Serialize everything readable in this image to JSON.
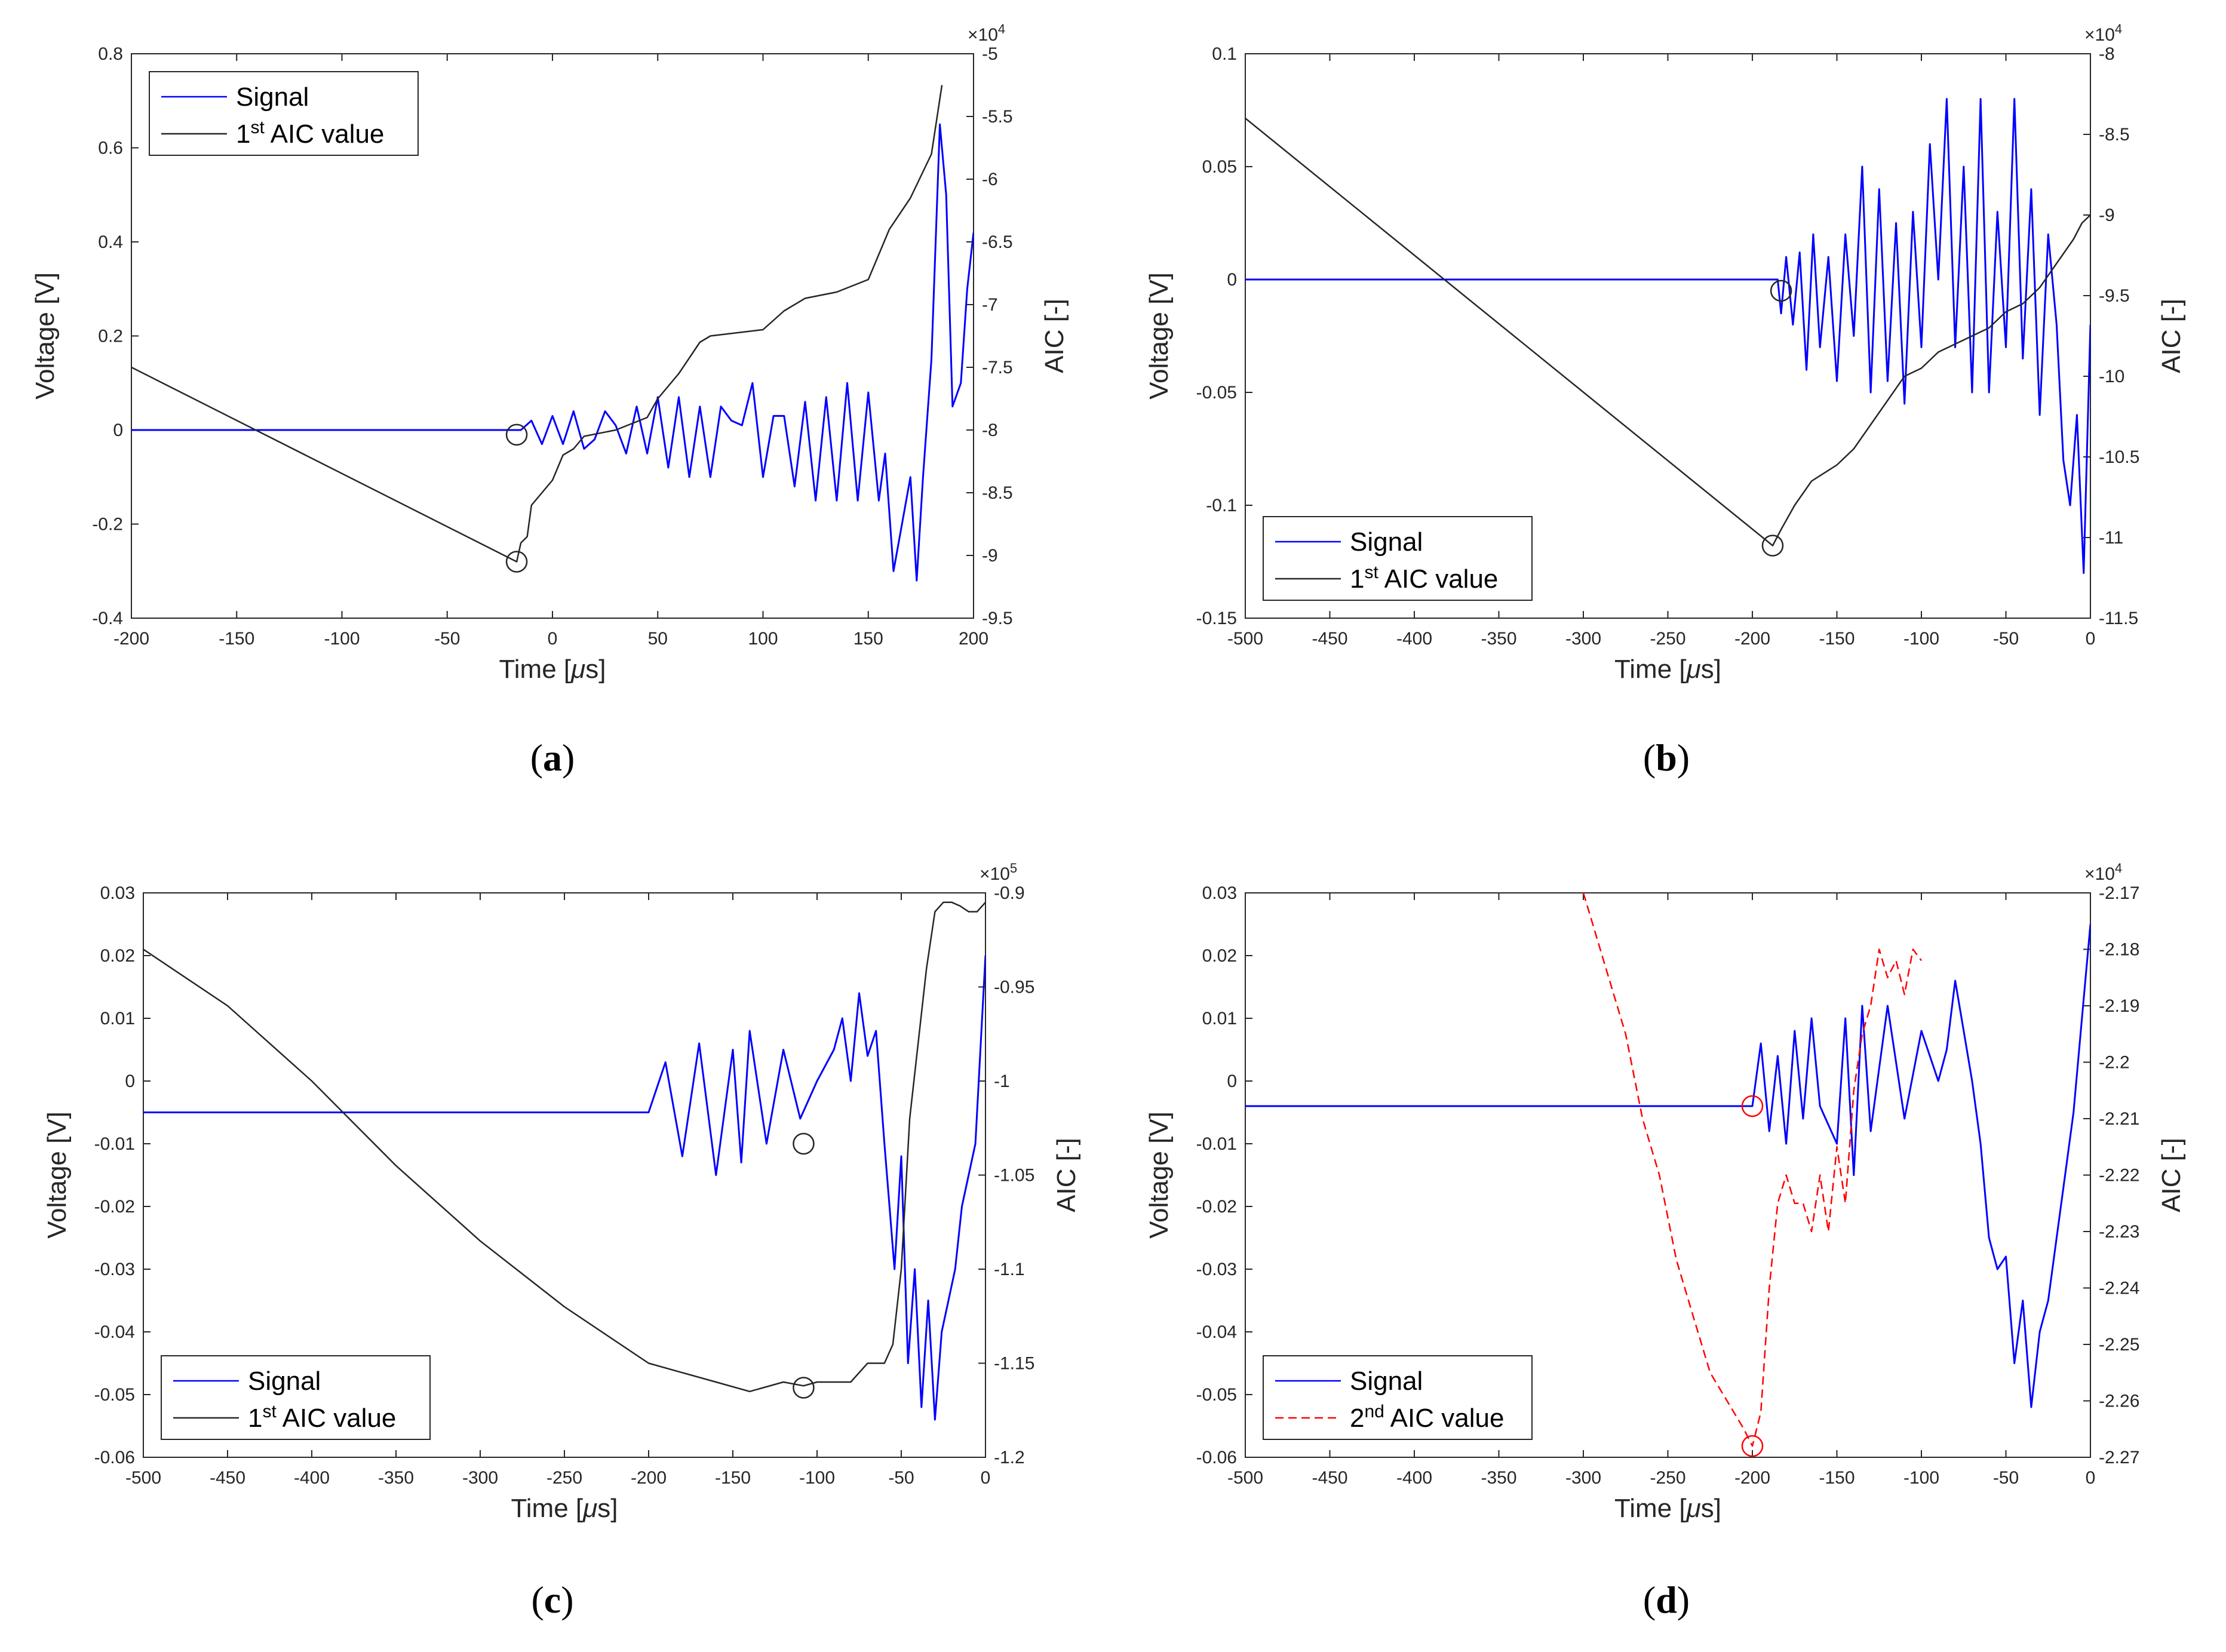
{
  "chart_data": [
    {
      "id": "a",
      "type": "line",
      "caption": "a",
      "xlabel": "Time [μs]",
      "xlabel_parts": [
        "Time [",
        "μ",
        "s]"
      ],
      "ylabel_left": "Voltage [V]",
      "ylabel_right": "AIC [-]",
      "xlim": [
        -200,
        200
      ],
      "xticks": [
        "-200",
        "-150",
        "-100",
        "-50",
        "0",
        "50",
        "100",
        "150",
        "200"
      ],
      "ylim_left": [
        -0.4,
        0.8
      ],
      "yticks_left": [
        "-0.4",
        "-0.2",
        "0",
        "0.2",
        "0.4",
        "0.6",
        "0.8"
      ],
      "ylim_right": [
        -9.5,
        -5
      ],
      "yticks_right": [
        "-9.5",
        "-9",
        "-8.5",
        "-8",
        "-7.5",
        "-7",
        "-6.5",
        "-6",
        "-5.5",
        "-5"
      ],
      "right_multiplier": "×10",
      "right_exponent": "4",
      "legend": {
        "position": "top-left",
        "entries": [
          {
            "label": "Signal",
            "sup": "",
            "suffix": ""
          },
          {
            "label": "1",
            "sup": "st",
            "suffix": " AIC value"
          }
        ]
      },
      "series": [
        {
          "name": "Signal",
          "axis": "left",
          "color": "#0000ff",
          "style": "solid",
          "x": [
            -200,
            -20,
            -15,
            -10,
            -5,
            0,
            5,
            10,
            15,
            20,
            25,
            30,
            35,
            40,
            45,
            50,
            55,
            60,
            65,
            70,
            75,
            80,
            85,
            90,
            95,
            100,
            105,
            110,
            115,
            120,
            125,
            130,
            135,
            140,
            145,
            150,
            155,
            158,
            162,
            166,
            170,
            173,
            176,
            180,
            184,
            187,
            190,
            194,
            197,
            200
          ],
          "y": [
            0,
            0,
            0,
            0.02,
            -0.03,
            0.03,
            -0.03,
            0.04,
            -0.04,
            -0.02,
            0.04,
            0.01,
            -0.05,
            0.05,
            -0.05,
            0.07,
            -0.08,
            0.07,
            -0.1,
            0.05,
            -0.1,
            0.05,
            0.02,
            0.01,
            0.1,
            -0.1,
            0.03,
            0.03,
            -0.12,
            0.06,
            -0.15,
            0.07,
            -0.15,
            0.1,
            -0.15,
            0.08,
            -0.15,
            -0.05,
            -0.3,
            -0.2,
            -0.1,
            -0.32,
            -0.1,
            0.15,
            0.65,
            0.5,
            0.05,
            0.1,
            0.3,
            0.42
          ]
        },
        {
          "name": "1st AIC value",
          "axis": "right",
          "color": "#262626",
          "style": "solid",
          "x": [
            -200,
            -17,
            -15,
            -12,
            -10,
            0,
            5,
            10,
            15,
            30,
            45,
            50,
            60,
            70,
            75,
            100,
            110,
            120,
            135,
            150,
            160,
            170,
            180,
            185
          ],
          "y": [
            -7.5,
            -9.05,
            -8.9,
            -8.85,
            -8.6,
            -8.4,
            -8.2,
            -8.15,
            -8.05,
            -8.0,
            -7.9,
            -7.75,
            -7.55,
            -7.3,
            -7.25,
            -7.2,
            -7.05,
            -6.95,
            -6.9,
            -6.8,
            -6.4,
            -6.15,
            -5.8,
            -5.25
          ]
        }
      ],
      "markers": [
        {
          "x": -17,
          "y": -0.01,
          "axis": "left",
          "color": "#262626"
        },
        {
          "x": -17,
          "y": -9.05,
          "axis": "right",
          "color": "#262626"
        }
      ]
    },
    {
      "id": "b",
      "type": "line",
      "caption": "b",
      "xlabel": "Time [μs]",
      "xlabel_parts": [
        "Time [",
        "μ",
        "s]"
      ],
      "ylabel_left": "Voltage [V]",
      "ylabel_right": "AIC [-]",
      "xlim": [
        -500,
        0
      ],
      "xticks": [
        "-500",
        "-450",
        "-400",
        "-350",
        "-300",
        "-250",
        "-200",
        "-150",
        "-100",
        "-50",
        "0"
      ],
      "ylim_left": [
        -0.15,
        0.1
      ],
      "yticks_left": [
        "-0.15",
        "-0.1",
        "-0.05",
        "0",
        "0.05",
        "0.1"
      ],
      "ylim_right": [
        -11.5,
        -8
      ],
      "yticks_right": [
        "-11.5",
        "-11",
        "-10.5",
        "-10",
        "-9.5",
        "-9",
        "-8.5",
        "-8"
      ],
      "right_multiplier": "×10",
      "right_exponent": "4",
      "legend": {
        "position": "bottom-left",
        "entries": [
          {
            "label": "Signal",
            "sup": "",
            "suffix": ""
          },
          {
            "label": "1",
            "sup": "st",
            "suffix": " AIC value"
          }
        ]
      },
      "series": [
        {
          "name": "Signal",
          "axis": "left",
          "color": "#0000ff",
          "style": "solid",
          "x": [
            -500,
            -185,
            -183,
            -180,
            -176,
            -172,
            -168,
            -164,
            -160,
            -155,
            -150,
            -145,
            -140,
            -135,
            -130,
            -125,
            -120,
            -115,
            -110,
            -105,
            -100,
            -95,
            -90,
            -85,
            -80,
            -75,
            -70,
            -65,
            -60,
            -55,
            -50,
            -45,
            -40,
            -35,
            -30,
            -25,
            -20,
            -16,
            -12,
            -8,
            -4,
            0
          ],
          "y": [
            0,
            0,
            -0.015,
            0.01,
            -0.02,
            0.012,
            -0.04,
            0.02,
            -0.03,
            0.01,
            -0.045,
            0.02,
            -0.025,
            0.05,
            -0.05,
            0.04,
            -0.045,
            0.025,
            -0.055,
            0.03,
            -0.03,
            0.06,
            0.0,
            0.08,
            -0.03,
            0.05,
            -0.05,
            0.08,
            -0.05,
            0.03,
            -0.03,
            0.08,
            -0.035,
            0.04,
            -0.06,
            0.02,
            -0.02,
            -0.08,
            -0.1,
            -0.06,
            -0.13,
            -0.02
          ]
        },
        {
          "name": "1st AIC value",
          "axis": "right",
          "color": "#262626",
          "style": "solid",
          "x": [
            -500,
            -188,
            -183,
            -175,
            -165,
            -150,
            -140,
            -130,
            -120,
            -110,
            -100,
            -90,
            -80,
            -70,
            -60,
            -50,
            -40,
            -30,
            -20,
            -10,
            -5,
            0
          ],
          "y": [
            -8.4,
            -11.05,
            -10.95,
            -10.8,
            -10.65,
            -10.55,
            -10.45,
            -10.3,
            -10.15,
            -10.0,
            -9.95,
            -9.85,
            -9.8,
            -9.75,
            -9.7,
            -9.6,
            -9.55,
            -9.45,
            -9.3,
            -9.15,
            -9.05,
            -9.0
          ]
        }
      ],
      "markers": [
        {
          "x": -183,
          "y": -0.005,
          "axis": "left",
          "color": "#262626"
        },
        {
          "x": -188,
          "y": -11.05,
          "axis": "right",
          "color": "#262626"
        }
      ]
    },
    {
      "id": "c",
      "type": "line",
      "caption": "c",
      "xlabel": "Time [μs]",
      "xlabel_parts": [
        "Time [",
        "μ",
        "s]"
      ],
      "ylabel_left": "Voltage [V]",
      "ylabel_right": "AIC [-]",
      "xlim": [
        -500,
        0
      ],
      "xticks": [
        "-500",
        "-450",
        "-400",
        "-350",
        "-300",
        "-250",
        "-200",
        "-150",
        "-100",
        "-50",
        "0"
      ],
      "ylim_left": [
        -0.06,
        0.03
      ],
      "yticks_left": [
        "-0.06",
        "-0.05",
        "-0.04",
        "-0.03",
        "-0.02",
        "-0.01",
        "0",
        "0.01",
        "0.02",
        "0.03"
      ],
      "ylim_right": [
        -1.2,
        -0.9
      ],
      "yticks_right": [
        "-1.2",
        "-1.15",
        "-1.1",
        "-1.05",
        "-1",
        "-0.95",
        "-0.9"
      ],
      "right_multiplier": "×10",
      "right_exponent": "5",
      "legend": {
        "position": "bottom-left",
        "entries": [
          {
            "label": "Signal",
            "sup": "",
            "suffix": ""
          },
          {
            "label": "1",
            "sup": "st",
            "suffix": " AIC value"
          }
        ]
      },
      "series": [
        {
          "name": "Signal",
          "axis": "left",
          "color": "#0000ff",
          "style": "solid",
          "x": [
            -500,
            -200,
            -190,
            -180,
            -170,
            -160,
            -150,
            -145,
            -140,
            -130,
            -120,
            -110,
            -100,
            -90,
            -85,
            -80,
            -75,
            -70,
            -65,
            -60,
            -57,
            -54,
            -50,
            -46,
            -42,
            -38,
            -34,
            -30,
            -26,
            -22,
            -18,
            -14,
            -10,
            -6,
            -3,
            0
          ],
          "y": [
            -0.005,
            -0.005,
            0.003,
            -0.012,
            0.006,
            -0.015,
            0.005,
            -0.013,
            0.008,
            -0.01,
            0.005,
            -0.006,
            0.0,
            0.005,
            0.01,
            0.0,
            0.014,
            0.004,
            0.008,
            -0.01,
            -0.02,
            -0.03,
            -0.012,
            -0.045,
            -0.03,
            -0.052,
            -0.035,
            -0.054,
            -0.04,
            -0.035,
            -0.03,
            -0.02,
            -0.015,
            -0.01,
            0.005,
            0.02
          ]
        },
        {
          "name": "1st AIC value",
          "axis": "right",
          "color": "#262626",
          "style": "solid",
          "x": [
            -500,
            -450,
            -400,
            -350,
            -300,
            -250,
            -200,
            -180,
            -160,
            -140,
            -120,
            -108,
            -100,
            -80,
            -70,
            -60,
            -55,
            -50,
            -45,
            -40,
            -35,
            -30,
            -25,
            -20,
            -15,
            -10,
            -5,
            0
          ],
          "y": [
            -0.93,
            -0.96,
            -1.0,
            -1.045,
            -1.085,
            -1.12,
            -1.15,
            -1.155,
            -1.16,
            -1.165,
            -1.16,
            -1.162,
            -1.16,
            -1.16,
            -1.15,
            -1.15,
            -1.14,
            -1.1,
            -1.02,
            -0.98,
            -0.94,
            -0.91,
            -0.905,
            -0.905,
            -0.907,
            -0.91,
            -0.91,
            -0.905
          ]
        }
      ],
      "markers": [
        {
          "x": -108,
          "y": -0.01,
          "axis": "left",
          "color": "#262626"
        },
        {
          "x": -108,
          "y": -1.163,
          "axis": "right",
          "color": "#262626"
        }
      ]
    },
    {
      "id": "d",
      "type": "line",
      "caption": "d",
      "xlabel": "Time [μs]",
      "xlabel_parts": [
        "Time [",
        "μ",
        "s]"
      ],
      "ylabel_left": "Voltage [V]",
      "ylabel_right": "AIC [-]",
      "xlim": [
        -500,
        0
      ],
      "xticks": [
        "-500",
        "-450",
        "-400",
        "-350",
        "-300",
        "-250",
        "-200",
        "-150",
        "-100",
        "-50",
        "0"
      ],
      "ylim_left": [
        -0.06,
        0.03
      ],
      "yticks_left": [
        "-0.06",
        "-0.05",
        "-0.04",
        "-0.03",
        "-0.02",
        "-0.01",
        "0",
        "0.01",
        "0.02",
        "0.03"
      ],
      "ylim_right": [
        -2.27,
        -2.17
      ],
      "yticks_right": [
        "-2.27",
        "-2.26",
        "-2.25",
        "-2.24",
        "-2.23",
        "-2.22",
        "-2.21",
        "-2.2",
        "-2.19",
        "-2.18",
        "-2.17"
      ],
      "right_multiplier": "×10",
      "right_exponent": "4",
      "legend": {
        "position": "bottom-left",
        "entries": [
          {
            "label": "Signal",
            "sup": "",
            "suffix": ""
          },
          {
            "label": "2",
            "sup": "nd",
            "suffix": " AIC value"
          }
        ]
      },
      "series": [
        {
          "name": "Signal",
          "axis": "left",
          "color": "#0000ff",
          "style": "solid",
          "x": [
            -500,
            -200,
            -195,
            -190,
            -185,
            -180,
            -175,
            -170,
            -165,
            -160,
            -150,
            -145,
            -140,
            -135,
            -130,
            -120,
            -110,
            -100,
            -90,
            -85,
            -80,
            -75,
            -70,
            -65,
            -60,
            -55,
            -50,
            -45,
            -40,
            -35,
            -30,
            -25,
            -20,
            -15,
            -10,
            -5,
            0
          ],
          "y": [
            -0.004,
            -0.004,
            0.006,
            -0.008,
            0.004,
            -0.01,
            0.008,
            -0.006,
            0.01,
            -0.004,
            -0.01,
            0.01,
            -0.015,
            0.012,
            -0.008,
            0.012,
            -0.006,
            0.008,
            0.0,
            0.005,
            0.016,
            0.008,
            0.0,
            -0.01,
            -0.025,
            -0.03,
            -0.028,
            -0.045,
            -0.035,
            -0.052,
            -0.04,
            -0.035,
            -0.025,
            -0.015,
            -0.005,
            0.01,
            0.025
          ]
        },
        {
          "name": "2nd AIC value",
          "axis": "right",
          "color": "#ff0000",
          "style": "dashed",
          "x": [
            -300,
            -295,
            -285,
            -275,
            -265,
            -255,
            -245,
            -235,
            -225,
            -215,
            -205,
            -200,
            -195,
            -190,
            -185,
            -180,
            -175,
            -170,
            -165,
            -160,
            -155,
            -150,
            -145,
            -140,
            -135,
            -130,
            -125,
            -120,
            -115,
            -110,
            -105,
            -100
          ],
          "y": [
            -2.17,
            -2.175,
            -2.185,
            -2.195,
            -2.21,
            -2.22,
            -2.235,
            -2.245,
            -2.255,
            -2.26,
            -2.265,
            -2.268,
            -2.262,
            -2.24,
            -2.225,
            -2.22,
            -2.225,
            -2.225,
            -2.23,
            -2.22,
            -2.23,
            -2.215,
            -2.225,
            -2.205,
            -2.195,
            -2.19,
            -2.18,
            -2.185,
            -2.182,
            -2.188,
            -2.18,
            -2.182
          ]
        }
      ],
      "markers": [
        {
          "x": -200,
          "y": -0.004,
          "axis": "left",
          "color": "#ff0000"
        },
        {
          "x": -200,
          "y": -2.268,
          "axis": "right",
          "color": "#ff0000"
        }
      ]
    }
  ]
}
